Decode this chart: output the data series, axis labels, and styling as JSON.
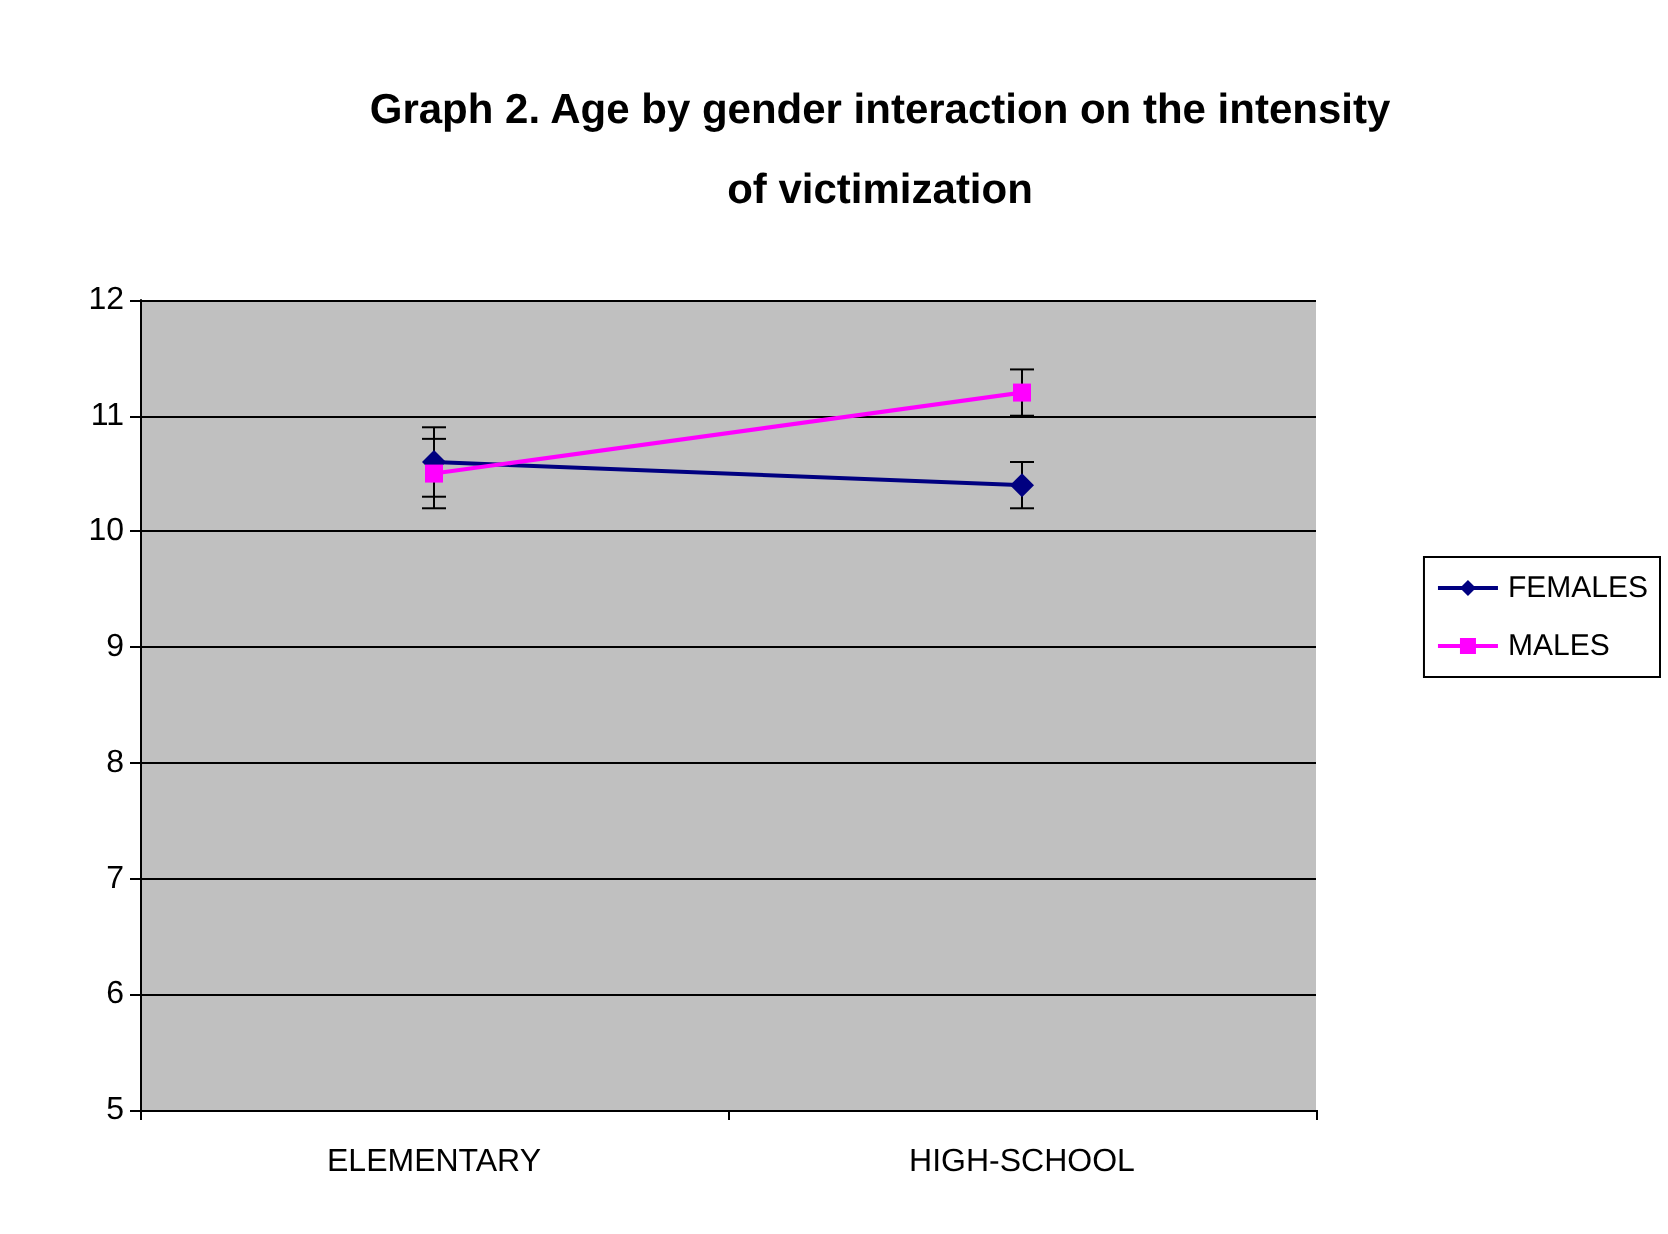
{
  "chart_data": {
    "type": "line",
    "title": "Graph 2. Age by gender interaction on the intensity\nof victimization",
    "categories": [
      "ELEMENTARY",
      "HIGH-SCHOOL"
    ],
    "series": [
      {
        "name": "FEMALES",
        "color": "#000080",
        "values": [
          10.6,
          10.4
        ],
        "errors": [
          0.3,
          0.2
        ],
        "marker": "diamond"
      },
      {
        "name": "MALES",
        "color": "#ff00ff",
        "values": [
          10.5,
          11.2
        ],
        "errors": [
          0.3,
          0.2
        ],
        "marker": "square"
      }
    ],
    "ylim": [
      5,
      12
    ],
    "yticks": [
      5,
      6,
      7,
      8,
      9,
      10,
      11,
      12
    ],
    "grid": "y",
    "legend": "right",
    "line_style": "solid"
  }
}
